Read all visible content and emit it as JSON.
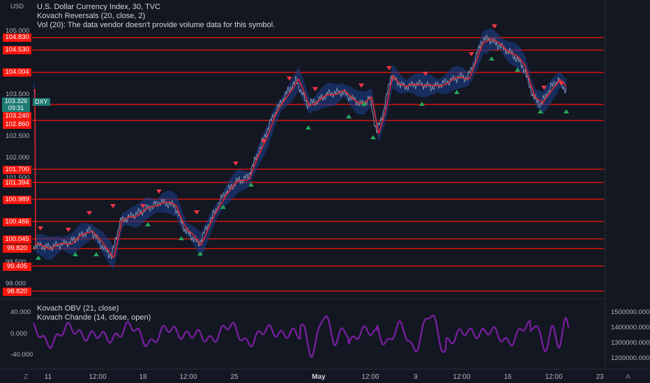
{
  "header": {
    "currency": "USD",
    "title": "U.S. Dollar Currency Index, 30, TVC",
    "study1": "Kovach Reversals (20, close, 2)",
    "study2": "Vol (20): The data vendor doesn't provide volume data for this symbol."
  },
  "price_axis": {
    "ticks": [
      "105.000",
      "103.500",
      "102.500",
      "102.000",
      "101.500",
      "99.500",
      "99.000"
    ],
    "level_labels": [
      "104.830",
      "104.530",
      "104.004",
      "103.240",
      "102.860",
      "101.700",
      "101.394",
      "100.989",
      "100.466",
      "100.045",
      "99.820",
      "99.405",
      "98.820"
    ],
    "current_price": "103.326",
    "countdown": "09:31",
    "symbol": "DXY"
  },
  "time_axis": {
    "ticks": [
      "11",
      "12:00",
      "18",
      "12:00",
      "25",
      "May",
      "12:00",
      "9",
      "12:00",
      "16",
      "12:00",
      "23"
    ],
    "left_icon": "Z",
    "right_icon": "A"
  },
  "oscillator": {
    "legend1": "Kovach OBV (21, close)",
    "legend2": "Kovach Chande (14, close, open)",
    "left_ticks": [
      "40.000",
      "0.000",
      "-40.000"
    ],
    "right_ticks": [
      "1500000.000",
      "1400000.000",
      "1300000.000",
      "1200000.000"
    ]
  },
  "colors": {
    "background": "#131722",
    "level_line": "#f7160d",
    "band": "#1e3a8a",
    "ma": "#e53935",
    "up_arrow": "#26a65b",
    "down_arrow": "#f23645",
    "oscillator": "#7b1fa2"
  }
}
